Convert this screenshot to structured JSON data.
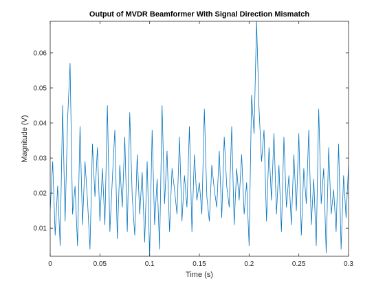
{
  "chart_data": {
    "type": "line",
    "title": "Output of MVDR Beamformer With Signal Direction Mismatch",
    "xlabel": "Time (s)",
    "ylabel": "Magnitude (V)",
    "xlim": [
      0,
      0.3
    ],
    "ylim": [
      0.002,
      0.069
    ],
    "xticks": [
      0,
      0.05,
      0.1,
      0.15,
      0.2,
      0.25,
      0.3
    ],
    "xtick_labels": [
      "0",
      "0.05",
      "0.1",
      "0.15",
      "0.2",
      "0.25",
      "0.3"
    ],
    "yticks": [
      0.01,
      0.02,
      0.03,
      0.04,
      0.05,
      0.06
    ],
    "ytick_labels": [
      "0.01",
      "0.02",
      "0.03",
      "0.04",
      "0.05",
      "0.06"
    ],
    "grid": false,
    "legend": "none",
    "line_color": "#0072bd",
    "series": [
      {
        "x": [
          0.0,
          0.0025,
          0.005,
          0.0075,
          0.01,
          0.0125,
          0.015,
          0.0175,
          0.02,
          0.0225,
          0.025,
          0.0275,
          0.03,
          0.0325,
          0.035,
          0.0375,
          0.04,
          0.0425,
          0.045,
          0.0475,
          0.05,
          0.0525,
          0.055,
          0.0575,
          0.06,
          0.0625,
          0.065,
          0.0675,
          0.07,
          0.0725,
          0.075,
          0.0775,
          0.08,
          0.0825,
          0.085,
          0.0875,
          0.09,
          0.0925,
          0.095,
          0.0975,
          0.1,
          0.1025,
          0.105,
          0.1075,
          0.11,
          0.1125,
          0.115,
          0.1175,
          0.12,
          0.1225,
          0.125,
          0.1275,
          0.13,
          0.1325,
          0.135,
          0.1375,
          0.14,
          0.1425,
          0.145,
          0.1475,
          0.15,
          0.1525,
          0.155,
          0.1575,
          0.16,
          0.1625,
          0.165,
          0.1675,
          0.17,
          0.1725,
          0.175,
          0.1775,
          0.18,
          0.1825,
          0.185,
          0.1875,
          0.19,
          0.1925,
          0.195,
          0.1975,
          0.2,
          0.2025,
          0.205,
          0.2075,
          0.21,
          0.2125,
          0.215,
          0.2175,
          0.22,
          0.2225,
          0.225,
          0.2275,
          0.23,
          0.2325,
          0.235,
          0.2375,
          0.24,
          0.2425,
          0.245,
          0.2475,
          0.25,
          0.2525,
          0.255,
          0.2575,
          0.26,
          0.2625,
          0.265,
          0.2675,
          0.27,
          0.2725,
          0.275,
          0.2775,
          0.28,
          0.2825,
          0.285,
          0.2875,
          0.29,
          0.2925,
          0.295,
          0.2975,
          0.3
        ],
        "y": [
          0.015,
          0.029,
          0.008,
          0.022,
          0.005,
          0.045,
          0.012,
          0.041,
          0.057,
          0.014,
          0.022,
          0.005,
          0.039,
          0.011,
          0.029,
          0.018,
          0.004,
          0.034,
          0.019,
          0.033,
          0.012,
          0.027,
          0.011,
          0.045,
          0.009,
          0.024,
          0.038,
          0.007,
          0.028,
          0.016,
          0.036,
          0.009,
          0.043,
          0.019,
          0.008,
          0.031,
          0.014,
          0.026,
          0.006,
          0.029,
          0.002,
          0.038,
          0.011,
          0.024,
          0.004,
          0.045,
          0.017,
          0.032,
          0.009,
          0.027,
          0.021,
          0.014,
          0.036,
          0.012,
          0.025,
          0.016,
          0.039,
          0.009,
          0.031,
          0.018,
          0.023,
          0.014,
          0.044,
          0.019,
          0.012,
          0.028,
          0.021,
          0.016,
          0.032,
          0.013,
          0.036,
          0.022,
          0.016,
          0.039,
          0.011,
          0.027,
          0.018,
          0.031,
          0.014,
          0.023,
          0.005,
          0.048,
          0.037,
          0.069,
          0.044,
          0.029,
          0.038,
          0.012,
          0.033,
          0.018,
          0.037,
          0.014,
          0.028,
          0.009,
          0.036,
          0.016,
          0.025,
          0.011,
          0.031,
          0.015,
          0.037,
          0.008,
          0.027,
          0.017,
          0.038,
          0.011,
          0.024,
          0.005,
          0.044,
          0.017,
          0.027,
          0.003,
          0.033,
          0.014,
          0.021,
          0.009,
          0.034,
          0.004,
          0.025,
          0.013,
          0.028
        ]
      }
    ]
  }
}
